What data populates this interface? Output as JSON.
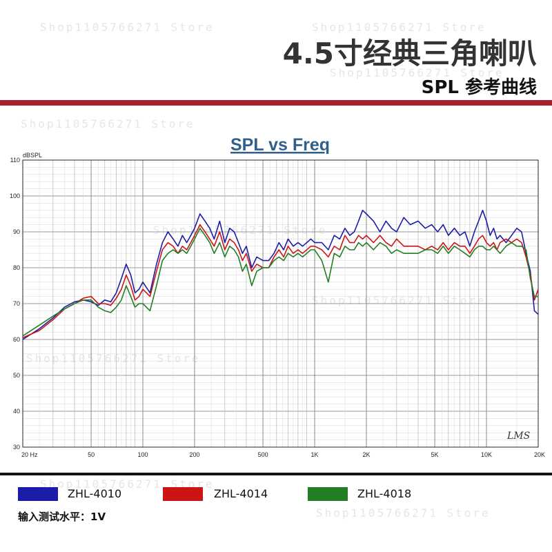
{
  "header": {
    "title": "4.5寸经典三角喇叭",
    "subtitle": "SPL 参考曲线",
    "watermark": "Shop1105766271 Store"
  },
  "colors": {
    "accent": "#a8202e"
  },
  "chart_data": {
    "type": "line",
    "title": "SPL vs Freq",
    "ylabel": "dBSPL",
    "xlabel": "",
    "x_scale": "log",
    "xlim": [
      20,
      20000
    ],
    "ylim": [
      30,
      110
    ],
    "y_ticks": [
      30,
      40,
      50,
      60,
      70,
      80,
      90,
      100,
      110
    ],
    "x_ticks": [
      {
        "value": 20,
        "label": "20  Hz"
      },
      {
        "value": 50,
        "label": "50"
      },
      {
        "value": 100,
        "label": "100"
      },
      {
        "value": 200,
        "label": "200"
      },
      {
        "value": 500,
        "label": "500"
      },
      {
        "value": 1000,
        "label": "1K"
      },
      {
        "value": 2000,
        "label": "2K"
      },
      {
        "value": 5000,
        "label": "5K"
      },
      {
        "value": 10000,
        "label": "10K"
      },
      {
        "value": 20000,
        "label": "20K"
      }
    ],
    "grid": true,
    "logo_text": "LMS",
    "x": [
      20,
      25,
      30,
      35,
      40,
      45,
      50,
      55,
      60,
      65,
      70,
      75,
      80,
      85,
      90,
      95,
      100,
      110,
      120,
      130,
      140,
      150,
      160,
      170,
      180,
      190,
      200,
      215,
      230,
      245,
      260,
      280,
      300,
      320,
      340,
      360,
      380,
      400,
      430,
      460,
      500,
      540,
      580,
      620,
      660,
      700,
      750,
      800,
      850,
      900,
      950,
      1000,
      1100,
      1200,
      1300,
      1400,
      1500,
      1600,
      1700,
      1800,
      1900,
      2000,
      2200,
      2400,
      2600,
      2800,
      3000,
      3300,
      3600,
      4000,
      4400,
      4800,
      5200,
      5600,
      6000,
      6500,
      7000,
      7500,
      8000,
      8500,
      9000,
      9500,
      10000,
      10500,
      11000,
      11500,
      12000,
      13000,
      14000,
      15000,
      16000,
      17000,
      18000,
      19000,
      20000
    ],
    "series": [
      {
        "name": "ZHL-4010",
        "color": "#1c1ca8",
        "values": [
          60,
          63,
          66,
          69,
          70.5,
          71,
          70.5,
          69.5,
          71,
          70.5,
          73,
          77,
          81,
          78,
          73,
          74,
          76,
          73,
          81,
          87,
          90,
          88,
          86,
          89,
          87,
          89,
          91,
          95,
          93,
          91,
          88,
          93,
          87,
          91,
          90,
          87,
          84,
          86,
          80,
          83,
          82,
          82,
          84,
          87,
          85,
          88,
          86,
          87,
          86,
          87,
          88,
          87,
          87,
          85,
          89,
          88,
          91,
          89,
          90,
          93,
          96,
          95,
          93,
          90,
          93,
          91,
          90,
          94,
          92,
          93,
          91,
          92,
          90,
          92,
          89,
          91,
          89,
          90,
          86,
          90,
          93,
          96,
          93,
          89,
          91,
          88,
          89,
          87,
          89,
          91,
          90,
          84,
          79,
          68,
          67
        ]
      },
      {
        "name": "ZHL-4014",
        "color": "#cc1414",
        "values": [
          60.5,
          62.5,
          65.5,
          68.5,
          70,
          71.5,
          72,
          70,
          70,
          69.5,
          71.5,
          74,
          78,
          75,
          71,
          72,
          74,
          72,
          79,
          85,
          87,
          86,
          84,
          86,
          85,
          87,
          89,
          92,
          90,
          88,
          86,
          90,
          85,
          88,
          87,
          85,
          82,
          84,
          79,
          81,
          80,
          80,
          83,
          85,
          83,
          86,
          84,
          85,
          84,
          85,
          86,
          86,
          85,
          83,
          86,
          85,
          89,
          87,
          87,
          89,
          88,
          89,
          87,
          89,
          87,
          86,
          88,
          86,
          86,
          86,
          85,
          86,
          85,
          87,
          85,
          87,
          86,
          86,
          84,
          86,
          88,
          89,
          87,
          86,
          87,
          85,
          87,
          88,
          87,
          88,
          87,
          83,
          78,
          71,
          74
        ]
      },
      {
        "name": "ZHL-4018",
        "color": "#237d23",
        "values": [
          61,
          64,
          66.5,
          68.5,
          70,
          71,
          71,
          69,
          68,
          67.5,
          69,
          71,
          75,
          72,
          69,
          70,
          70,
          68,
          75,
          82,
          84,
          85,
          84,
          85,
          84,
          86,
          88,
          91,
          89,
          87,
          84,
          87,
          83,
          86,
          85,
          83,
          79,
          81,
          75,
          79,
          80,
          80,
          82,
          83,
          82,
          84,
          83,
          84,
          83,
          84,
          85,
          85,
          82,
          76,
          84,
          83,
          86,
          85,
          85,
          87,
          86,
          87,
          85,
          87,
          86,
          84,
          85,
          84,
          84,
          84,
          85,
          85,
          84,
          86,
          84,
          86,
          85,
          84,
          83,
          85,
          86,
          86,
          85,
          85,
          86,
          85,
          84,
          86,
          87,
          86,
          86,
          85,
          77,
          72,
          72
        ]
      }
    ]
  },
  "legend_title_note": "",
  "footnote": "输入测试水平：1V"
}
